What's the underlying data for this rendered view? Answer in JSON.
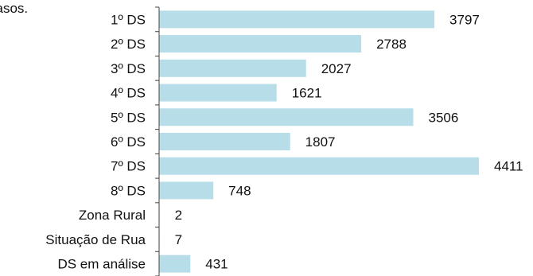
{
  "colors": {
    "bar": "#b7dde8",
    "axis": "#404040",
    "text": "#111111"
  },
  "header_fragment": "casos.",
  "chart_data": {
    "type": "bar",
    "orientation": "horizontal",
    "categories": [
      "1º DS",
      "2º DS",
      "3º DS",
      "4º DS",
      "5º DS",
      "6º DS",
      "7º DS",
      "8º DS",
      "Zona Rural",
      "Situação de Rua",
      "DS em análise"
    ],
    "values": [
      3797,
      2788,
      2027,
      1621,
      3506,
      1807,
      4411,
      748,
      2,
      7,
      431
    ],
    "title": "",
    "xlabel": "",
    "ylabel": "",
    "xlim": [
      0,
      4411
    ],
    "grid": false,
    "data_labels": true
  }
}
